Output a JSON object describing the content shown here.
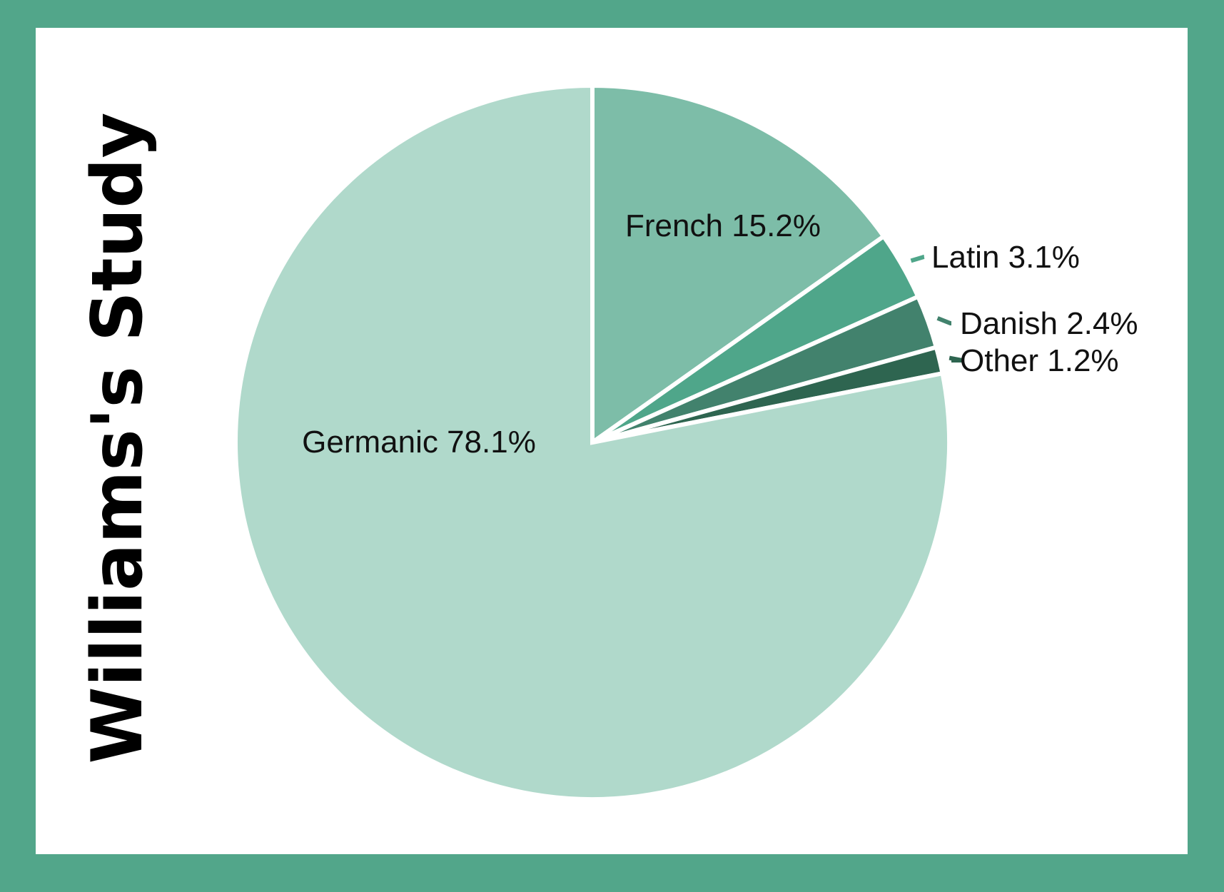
{
  "chart_data": {
    "type": "pie",
    "title": "Williams's Study",
    "start": "12 o'clock",
    "direction": "clockwise",
    "slices": [
      {
        "name": "French",
        "value": 15.2,
        "label": "French 15.2%",
        "color": "#7dbda8",
        "label_style": "inside"
      },
      {
        "name": "Latin",
        "value": 3.1,
        "label": "Latin 3.1%",
        "color": "#4fa68a",
        "label_style": "leader"
      },
      {
        "name": "Danish",
        "value": 2.4,
        "label": "Danish 2.4%",
        "color": "#42826d",
        "label_style": "leader"
      },
      {
        "name": "Other",
        "value": 1.2,
        "label": "Other 1.2%",
        "color": "#2e6550",
        "label_style": "leader"
      },
      {
        "name": "Germanic",
        "value": 78.1,
        "label": "Germanic 78.1%",
        "color": "#b0d9cb",
        "label_style": "inside"
      }
    ]
  },
  "colors": {
    "frame": "#52a68a",
    "panel": "#ffffff",
    "slice_border": "#ffffff"
  }
}
